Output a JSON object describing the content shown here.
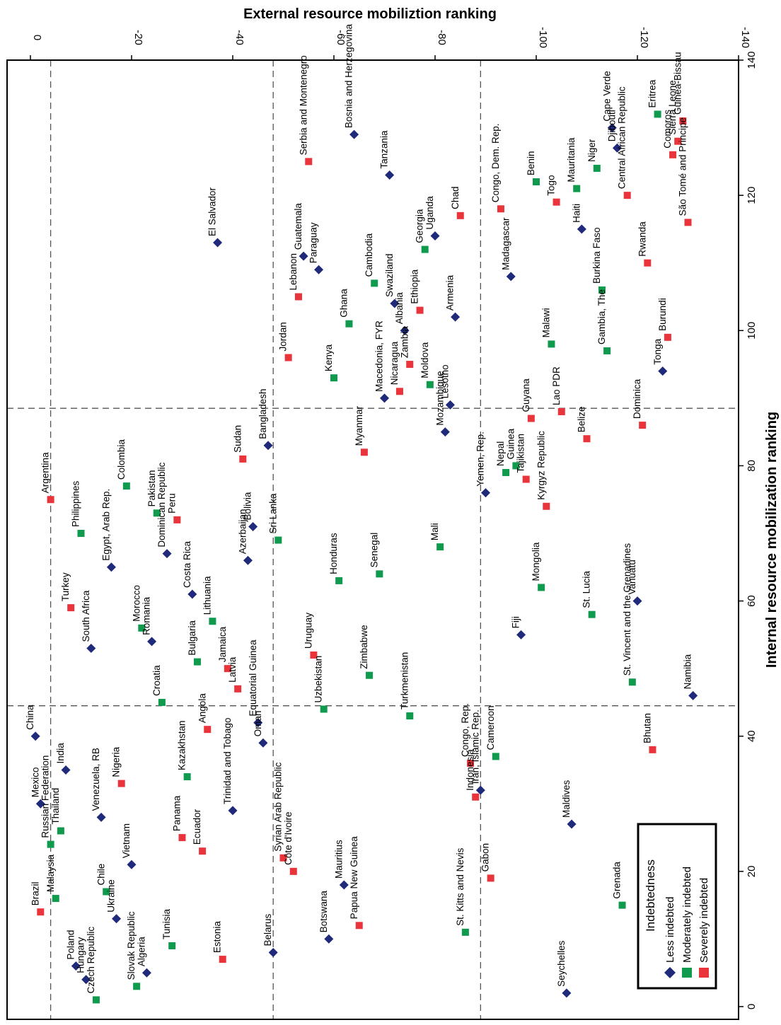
{
  "chart_data": {
    "type": "scatter",
    "title": "",
    "top_axis_label": "External resource mobiliztion ranking",
    "right_axis_label": "Internal resource mobilization ranking",
    "x": {
      "description": "External resource mobilization ranking (printed as negative values)",
      "range": [
        0,
        -140
      ],
      "ticks": [
        0,
        -20,
        -40,
        -60,
        -80,
        -100,
        -120,
        -140
      ],
      "tick_labels": [
        "0",
        "-20",
        "-40",
        "-60",
        "-80",
        "-100",
        "-120",
        "-140"
      ]
    },
    "y": {
      "description": "Internal resource mobilization ranking",
      "range": [
        0,
        140
      ],
      "ticks": [
        0,
        20,
        40,
        60,
        80,
        100,
        120,
        140
      ],
      "tick_labels": [
        "0",
        "20",
        "40",
        "60",
        "80",
        "100",
        "120",
        "140"
      ]
    },
    "reference_lines": {
      "external": [
        -4,
        -48,
        -89
      ],
      "internal": [
        44.5,
        88.5
      ]
    },
    "legend": {
      "title": "Indebtedness",
      "placement": "bottom-right",
      "entries": [
        {
          "key": "less",
          "label": "Less indebted",
          "color": "#1f2a7a",
          "marker": "diamond"
        },
        {
          "key": "moderate",
          "label": "Moderately indebted",
          "color": "#0f9a4e",
          "marker": "square"
        },
        {
          "key": "severe",
          "label": "Severely indebted",
          "color": "#e8343a",
          "marker": "square"
        }
      ]
    },
    "points": [
      {
        "name": "China",
        "ext": -1,
        "int": 40,
        "cat": "less"
      },
      {
        "name": "Mexico",
        "ext": -2,
        "int": 30,
        "cat": "less"
      },
      {
        "name": "Russian Federation",
        "ext": -4,
        "int": 24,
        "cat": "moderate"
      },
      {
        "name": "India",
        "ext": -7,
        "int": 35,
        "cat": "less"
      },
      {
        "name": "Thailand",
        "ext": -6,
        "int": 26,
        "cat": "moderate"
      },
      {
        "name": "Malaysia",
        "ext": -5,
        "int": 16,
        "cat": "moderate"
      },
      {
        "name": "Brazil",
        "ext": -2,
        "int": 14,
        "cat": "severe"
      },
      {
        "name": "Poland",
        "ext": -9,
        "int": 6,
        "cat": "less"
      },
      {
        "name": "Hungary",
        "ext": -11,
        "int": 4,
        "cat": "less"
      },
      {
        "name": "Czech Republic",
        "ext": -13,
        "int": 1,
        "cat": "moderate"
      },
      {
        "name": "Venezuela, RB",
        "ext": -14,
        "int": 28,
        "cat": "less"
      },
      {
        "name": "Chile",
        "ext": -15,
        "int": 17,
        "cat": "moderate"
      },
      {
        "name": "Ukraine",
        "ext": -17,
        "int": 13,
        "cat": "less"
      },
      {
        "name": "Slovak Republic",
        "ext": -21,
        "int": 3,
        "cat": "moderate"
      },
      {
        "name": "Nigeria",
        "ext": -18,
        "int": 33,
        "cat": "severe"
      },
      {
        "name": "Vietnam",
        "ext": -20,
        "int": 21,
        "cat": "less"
      },
      {
        "name": "Algeria",
        "ext": -23,
        "int": 5,
        "cat": "less"
      },
      {
        "name": "Tunisia",
        "ext": -28,
        "int": 9,
        "cat": "moderate"
      },
      {
        "name": "Argentina",
        "ext": -4,
        "int": 75,
        "cat": "severe"
      },
      {
        "name": "Philippines",
        "ext": -10,
        "int": 70,
        "cat": "moderate"
      },
      {
        "name": "Turkey",
        "ext": -8,
        "int": 59,
        "cat": "severe"
      },
      {
        "name": "South Africa",
        "ext": -12,
        "int": 53,
        "cat": "less"
      },
      {
        "name": "Egypt, Arab Rep.",
        "ext": -16,
        "int": 65,
        "cat": "less"
      },
      {
        "name": "Colombia",
        "ext": -19,
        "int": 77,
        "cat": "moderate"
      },
      {
        "name": "Morocco",
        "ext": -22,
        "int": 56,
        "cat": "moderate"
      },
      {
        "name": "Pakistan",
        "ext": -25,
        "int": 73,
        "cat": "moderate"
      },
      {
        "name": "Dominican Republic",
        "ext": -27,
        "int": 67,
        "cat": "less"
      },
      {
        "name": "Romania",
        "ext": -24,
        "int": 54,
        "cat": "less"
      },
      {
        "name": "Croatia",
        "ext": -26,
        "int": 45,
        "cat": "moderate"
      },
      {
        "name": "Peru",
        "ext": -29,
        "int": 72,
        "cat": "severe"
      },
      {
        "name": "Costa Rica",
        "ext": -32,
        "int": 61,
        "cat": "less"
      },
      {
        "name": "Bulgaria",
        "ext": -33,
        "int": 51,
        "cat": "moderate"
      },
      {
        "name": "Lithuania",
        "ext": -36,
        "int": 57,
        "cat": "moderate"
      },
      {
        "name": "Jamaica",
        "ext": -39,
        "int": 50,
        "cat": "severe"
      },
      {
        "name": "Latvia",
        "ext": -41,
        "int": 47,
        "cat": "severe"
      },
      {
        "name": "Kazakhstan",
        "ext": -31,
        "int": 34,
        "cat": "moderate"
      },
      {
        "name": "Angola",
        "ext": -35,
        "int": 41,
        "cat": "severe"
      },
      {
        "name": "Panama",
        "ext": -30,
        "int": 25,
        "cat": "severe"
      },
      {
        "name": "Ecuador",
        "ext": -34,
        "int": 23,
        "cat": "severe"
      },
      {
        "name": "Trinidad and Tobago",
        "ext": -40,
        "int": 29,
        "cat": "less"
      },
      {
        "name": "Estonia",
        "ext": -38,
        "int": 7,
        "cat": "severe"
      },
      {
        "name": "El Salvador",
        "ext": -37,
        "int": 113,
        "cat": "less"
      },
      {
        "name": "Sudan",
        "ext": -42,
        "int": 81,
        "cat": "severe"
      },
      {
        "name": "Bangladesh",
        "ext": -47,
        "int": 83,
        "cat": "less"
      },
      {
        "name": "Bolivia",
        "ext": -44,
        "int": 71,
        "cat": "less"
      },
      {
        "name": "Azerbaijan",
        "ext": -43,
        "int": 66,
        "cat": "less"
      },
      {
        "name": "Sri Lanka",
        "ext": -49,
        "int": 69,
        "cat": "moderate"
      },
      {
        "name": "Equatorial Guinea",
        "ext": -45,
        "int": 42,
        "cat": "less"
      },
      {
        "name": "Oman",
        "ext": -46,
        "int": 39,
        "cat": "less"
      },
      {
        "name": "Belarus",
        "ext": -48,
        "int": 8,
        "cat": "less"
      },
      {
        "name": "Syrian Arab Republic",
        "ext": -50,
        "int": 22,
        "cat": "severe"
      },
      {
        "name": "Côte d'Ivoire",
        "ext": -52,
        "int": 20,
        "cat": "severe"
      },
      {
        "name": "Lebanon",
        "ext": -53,
        "int": 105,
        "cat": "severe"
      },
      {
        "name": "Guatemala",
        "ext": -54,
        "int": 111,
        "cat": "less"
      },
      {
        "name": "Serbia and Montenegro",
        "ext": -55,
        "int": 125,
        "cat": "severe"
      },
      {
        "name": "Paraguay",
        "ext": -57,
        "int": 109,
        "cat": "less"
      },
      {
        "name": "Jordan",
        "ext": -51,
        "int": 96,
        "cat": "severe"
      },
      {
        "name": "Uruguay",
        "ext": -56,
        "int": 52,
        "cat": "severe"
      },
      {
        "name": "Uzbekistan",
        "ext": -58,
        "int": 44,
        "cat": "moderate"
      },
      {
        "name": "Botswana",
        "ext": -59,
        "int": 10,
        "cat": "less"
      },
      {
        "name": "Mauritius",
        "ext": -62,
        "int": 18,
        "cat": "less"
      },
      {
        "name": "Papua New Guinea",
        "ext": -65,
        "int": 12,
        "cat": "severe"
      },
      {
        "name": "Bosnia and Herzegovina",
        "ext": -64,
        "int": 129,
        "cat": "less"
      },
      {
        "name": "Ghana",
        "ext": -63,
        "int": 101,
        "cat": "moderate"
      },
      {
        "name": "Kenya",
        "ext": -60,
        "int": 93,
        "cat": "moderate"
      },
      {
        "name": "Honduras",
        "ext": -61,
        "int": 63,
        "cat": "moderate"
      },
      {
        "name": "Myanmar",
        "ext": -66,
        "int": 82,
        "cat": "severe"
      },
      {
        "name": "Zimbabwe",
        "ext": -67,
        "int": 49,
        "cat": "moderate"
      },
      {
        "name": "Senegal",
        "ext": -69,
        "int": 64,
        "cat": "moderate"
      },
      {
        "name": "Cambodia",
        "ext": -68,
        "int": 107,
        "cat": "moderate"
      },
      {
        "name": "Tanzania",
        "ext": -71,
        "int": 123,
        "cat": "less"
      },
      {
        "name": "Swaziland",
        "ext": -72,
        "int": 104,
        "cat": "less"
      },
      {
        "name": "Macedonia, FYR",
        "ext": -70,
        "int": 90,
        "cat": "less"
      },
      {
        "name": "Nicaragua",
        "ext": -73,
        "int": 91,
        "cat": "severe"
      },
      {
        "name": "Zambia",
        "ext": -75,
        "int": 95,
        "cat": "severe"
      },
      {
        "name": "Albania",
        "ext": -74,
        "int": 100,
        "cat": "less"
      },
      {
        "name": "Moldova",
        "ext": -79,
        "int": 92,
        "cat": "moderate"
      },
      {
        "name": "Ethiopia",
        "ext": -77,
        "int": 103,
        "cat": "severe"
      },
      {
        "name": "Georgia",
        "ext": -78,
        "int": 112,
        "cat": "moderate"
      },
      {
        "name": "Uganda",
        "ext": -80,
        "int": 114,
        "cat": "less"
      },
      {
        "name": "Chad",
        "ext": -85,
        "int": 117,
        "cat": "severe"
      },
      {
        "name": "Armenia",
        "ext": -84,
        "int": 102,
        "cat": "less"
      },
      {
        "name": "Lesotho",
        "ext": -83,
        "int": 89,
        "cat": "less"
      },
      {
        "name": "Mozambique",
        "ext": -82,
        "int": 85,
        "cat": "less"
      },
      {
        "name": "Mali",
        "ext": -81,
        "int": 68,
        "cat": "moderate"
      },
      {
        "name": "Turkmenistan",
        "ext": -75,
        "int": 43,
        "cat": "moderate"
      },
      {
        "name": "Congo, Rep.",
        "ext": -87,
        "int": 36,
        "cat": "severe"
      },
      {
        "name": "Cameroon",
        "ext": -92,
        "int": 37,
        "cat": "moderate"
      },
      {
        "name": "Iran, Islamic Rep.",
        "ext": -89,
        "int": 32,
        "cat": "less"
      },
      {
        "name": "Indonesia",
        "ext": -88,
        "int": 31,
        "cat": "severe"
      },
      {
        "name": "Gabon",
        "ext": -91,
        "int": 19,
        "cat": "severe"
      },
      {
        "name": "St. Kitts and Nevis",
        "ext": -86,
        "int": 11,
        "cat": "moderate"
      },
      {
        "name": "Congo, Dem. Rep.",
        "ext": -93,
        "int": 118,
        "cat": "severe"
      },
      {
        "name": "Madagascar",
        "ext": -95,
        "int": 108,
        "cat": "less"
      },
      {
        "name": "Yemen, Rep.",
        "ext": -90,
        "int": 76,
        "cat": "less"
      },
      {
        "name": "Nepal",
        "ext": -94,
        "int": 79,
        "cat": "moderate"
      },
      {
        "name": "Guinea",
        "ext": -96,
        "int": 80,
        "cat": "moderate"
      },
      {
        "name": "Tajikistan",
        "ext": -98,
        "int": 78,
        "cat": "severe"
      },
      {
        "name": "Kyrgyz Republic",
        "ext": -102,
        "int": 74,
        "cat": "severe"
      },
      {
        "name": "Guyana",
        "ext": -99,
        "int": 87,
        "cat": "severe"
      },
      {
        "name": "Fiji",
        "ext": -97,
        "int": 55,
        "cat": "less"
      },
      {
        "name": "Benin",
        "ext": -100,
        "int": 122,
        "cat": "moderate"
      },
      {
        "name": "Togo",
        "ext": -104,
        "int": 119,
        "cat": "severe"
      },
      {
        "name": "Mauritania",
        "ext": -108,
        "int": 121,
        "cat": "moderate"
      },
      {
        "name": "Haiti",
        "ext": -109,
        "int": 115,
        "cat": "less"
      },
      {
        "name": "Malawi",
        "ext": -103,
        "int": 98,
        "cat": "moderate"
      },
      {
        "name": "Lao PDR",
        "ext": -105,
        "int": 88,
        "cat": "severe"
      },
      {
        "name": "Belize",
        "ext": -110,
        "int": 84,
        "cat": "severe"
      },
      {
        "name": "Mongolia",
        "ext": -101,
        "int": 62,
        "cat": "moderate"
      },
      {
        "name": "St. Lucia",
        "ext": -111,
        "int": 58,
        "cat": "moderate"
      },
      {
        "name": "Maldives",
        "ext": -107,
        "int": 27,
        "cat": "less"
      },
      {
        "name": "Seychelles",
        "ext": -106,
        "int": 2,
        "cat": "less"
      },
      {
        "name": "Niger",
        "ext": -112,
        "int": 124,
        "cat": "moderate"
      },
      {
        "name": "Burkina Faso",
        "ext": -113,
        "int": 106,
        "cat": "moderate"
      },
      {
        "name": "Gambia, The",
        "ext": -114,
        "int": 97,
        "cat": "moderate"
      },
      {
        "name": "Cape Verde",
        "ext": -115,
        "int": 130,
        "cat": "less"
      },
      {
        "name": "Djibouti",
        "ext": -116,
        "int": 127,
        "cat": "less"
      },
      {
        "name": "Central African Republic",
        "ext": -118,
        "int": 120,
        "cat": "severe"
      },
      {
        "name": "Eritrea",
        "ext": -124,
        "int": 132,
        "cat": "moderate"
      },
      {
        "name": "Rwanda",
        "ext": -122,
        "int": 110,
        "cat": "severe"
      },
      {
        "name": "Comoros",
        "ext": -127,
        "int": 126,
        "cat": "severe"
      },
      {
        "name": "Guinea-Bissau",
        "ext": -129,
        "int": 131,
        "cat": "severe"
      },
      {
        "name": "Sierra Leone",
        "ext": -128,
        "int": 128,
        "cat": "severe"
      },
      {
        "name": "São Tomé and Principe",
        "ext": -130,
        "int": 116,
        "cat": "severe"
      },
      {
        "name": "Burundi",
        "ext": -126,
        "int": 99,
        "cat": "severe"
      },
      {
        "name": "Tonga",
        "ext": -125,
        "int": 94,
        "cat": "less"
      },
      {
        "name": "Dominica",
        "ext": -121,
        "int": 86,
        "cat": "severe"
      },
      {
        "name": "Vanuatu",
        "ext": -120,
        "int": 60,
        "cat": "less"
      },
      {
        "name": "St. Vincent and the Grenadines",
        "ext": -119,
        "int": 48,
        "cat": "moderate"
      },
      {
        "name": "Namibia",
        "ext": -131,
        "int": 46,
        "cat": "less"
      },
      {
        "name": "Bhutan",
        "ext": -123,
        "int": 38,
        "cat": "severe"
      },
      {
        "name": "Grenada",
        "ext": -117,
        "int": 15,
        "cat": "moderate"
      }
    ]
  }
}
